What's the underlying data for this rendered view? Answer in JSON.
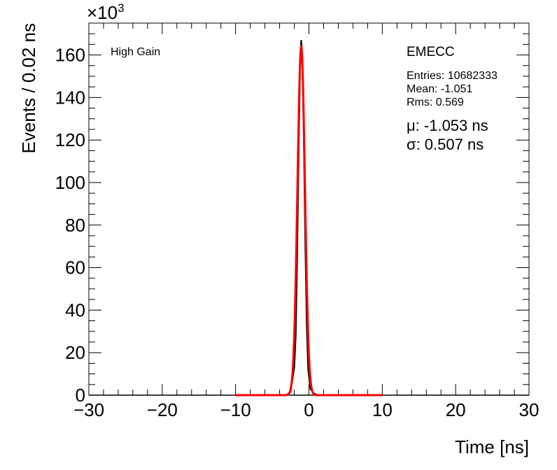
{
  "chart_data": {
    "type": "line",
    "xlabel": "Time [ns]",
    "ylabel": "Events / 0.02 ns",
    "y_multiplier": "×10",
    "y_multiplier_exp": "3",
    "xlim": [
      -30,
      30
    ],
    "ylim": [
      0,
      175
    ],
    "x_ticks": [
      -30,
      -20,
      -10,
      0,
      10,
      20,
      30
    ],
    "x_tick_labels": [
      "−30",
      "−20",
      "−10",
      "0",
      "10",
      "20",
      "30"
    ],
    "y_ticks": [
      0,
      20,
      40,
      60,
      80,
      100,
      120,
      140,
      160
    ],
    "y_tick_labels": [
      "0",
      "20",
      "40",
      "60",
      "80",
      "100",
      "120",
      "140",
      "160"
    ],
    "grid": false,
    "series": [
      {
        "kind": "histogram",
        "color": "#000000",
        "x": [
          -3.0,
          -2.5,
          -2.0,
          -1.8,
          -1.6,
          -1.4,
          -1.2,
          -1.05,
          -0.9,
          -0.7,
          -0.5,
          -0.3,
          -0.1,
          0.2,
          0.6,
          1.0
        ],
        "y": [
          0.2,
          1.5,
          13,
          28,
          66,
          115,
          155,
          167,
          158,
          120,
          72,
          33,
          12,
          3,
          1,
          0.3
        ]
      },
      {
        "kind": "gaussian_fit",
        "color": "#ff0000",
        "mu": -1.053,
        "sigma": 0.507,
        "amplitude": 164,
        "x_range": [
          -10,
          10
        ]
      }
    ]
  },
  "labels": {
    "gain": "High Gain",
    "region": "EMECC",
    "entries": "Entries: 10682333",
    "mean": "Mean: -1.051",
    "rms": "Rms: 0.569",
    "mu": "μ: -1.053 ns",
    "sigma": "σ: 0.507 ns"
  }
}
